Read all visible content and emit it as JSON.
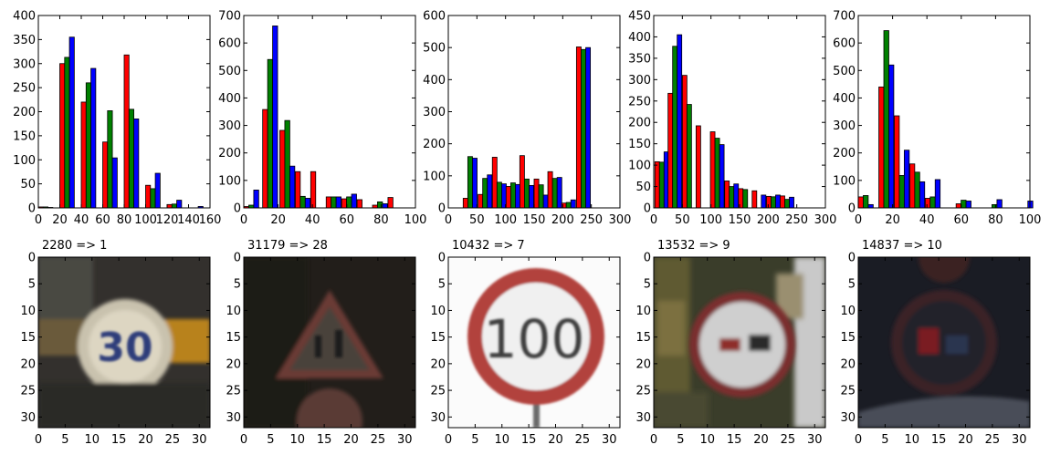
{
  "figure": {
    "background": "#ffffff",
    "colors": {
      "red": "#ff0000",
      "green": "#008000",
      "blue": "#0000ff",
      "edge": "#000000"
    }
  },
  "chart_data": [
    {
      "type": "bar",
      "title": "",
      "xlabel": "",
      "ylabel": "",
      "xlim": [
        0,
        160
      ],
      "ylim": [
        0,
        400
      ],
      "xticks": [
        0,
        20,
        40,
        60,
        80,
        100,
        120,
        140,
        160
      ],
      "yticks": [
        0,
        50,
        100,
        150,
        200,
        250,
        300,
        350,
        400
      ],
      "grid": false,
      "bin_width": 4.5,
      "bin_starts": [
        0,
        20,
        40,
        60,
        80,
        100,
        120,
        140
      ],
      "series": [
        {
          "color": "#ff0000",
          "values": [
            2,
            300,
            220,
            137,
            318,
            47,
            7,
            0
          ]
        },
        {
          "color": "#008000",
          "values": [
            2,
            313,
            260,
            202,
            205,
            40,
            8,
            0
          ]
        },
        {
          "color": "#0000ff",
          "values": [
            1,
            355,
            290,
            104,
            185,
            72,
            16,
            3
          ]
        }
      ]
    },
    {
      "type": "bar",
      "title": "",
      "xlabel": "",
      "ylabel": "",
      "xlim": [
        0,
        100
      ],
      "ylim": [
        0,
        700
      ],
      "xticks": [
        0,
        20,
        40,
        60,
        80,
        100
      ],
      "yticks": [
        0,
        100,
        200,
        300,
        400,
        500,
        600,
        700
      ],
      "grid": false,
      "bin_width": 2.9,
      "bin_starts": [
        0,
        11,
        21,
        30,
        39,
        48,
        57,
        66,
        75,
        84
      ],
      "series": [
        {
          "color": "#ff0000",
          "values": [
            5,
            358,
            282,
            132,
            132,
            40,
            33,
            30,
            10,
            38
          ]
        },
        {
          "color": "#008000",
          "values": [
            10,
            540,
            318,
            42,
            0,
            40,
            40,
            0,
            22,
            0
          ]
        },
        {
          "color": "#0000ff",
          "values": [
            65,
            662,
            152,
            35,
            0,
            40,
            50,
            0,
            15,
            0
          ]
        }
      ]
    },
    {
      "type": "bar",
      "title": "",
      "xlabel": "",
      "ylabel": "",
      "xlim": [
        0,
        300
      ],
      "ylim": [
        0,
        600
      ],
      "xticks": [
        0,
        50,
        100,
        150,
        200,
        250,
        300
      ],
      "yticks": [
        0,
        100,
        200,
        300,
        400,
        500,
        600
      ],
      "grid": false,
      "bin_width": 8.1,
      "bin_starts": [
        0,
        26,
        52,
        77,
        101,
        125,
        150,
        174,
        198,
        224
      ],
      "series": [
        {
          "color": "#ff0000",
          "values": [
            0,
            30,
            42,
            158,
            67,
            163,
            90,
            113,
            15,
            502
          ]
        },
        {
          "color": "#008000",
          "values": [
            0,
            160,
            92,
            80,
            78,
            90,
            72,
            92,
            17,
            494
          ]
        },
        {
          "color": "#0000ff",
          "values": [
            0,
            155,
            103,
            75,
            73,
            70,
            40,
            95,
            25,
            500
          ]
        }
      ]
    },
    {
      "type": "bar",
      "title": "",
      "xlabel": "",
      "ylabel": "",
      "xlim": [
        0,
        300
      ],
      "ylim": [
        0,
        450
      ],
      "xticks": [
        0,
        50,
        100,
        150,
        200,
        250,
        300
      ],
      "yticks": [
        0,
        50,
        100,
        150,
        200,
        250,
        300,
        350,
        400,
        450
      ],
      "grid": false,
      "bin_width": 8.0,
      "bin_starts": [
        2,
        25,
        50,
        74,
        99,
        124,
        148,
        172,
        197,
        221
      ],
      "series": [
        {
          "color": "#ff0000",
          "values": [
            108,
            268,
            310,
            192,
            178,
            63,
            45,
            40,
            27,
            28
          ]
        },
        {
          "color": "#008000",
          "values": [
            107,
            378,
            242,
            0,
            163,
            50,
            43,
            0,
            26,
            20
          ]
        },
        {
          "color": "#0000ff",
          "values": [
            131,
            405,
            0,
            0,
            148,
            56,
            0,
            30,
            30,
            25
          ]
        }
      ]
    },
    {
      "type": "bar",
      "title": "",
      "xlabel": "",
      "ylabel": "",
      "xlim": [
        0,
        100
      ],
      "ylim": [
        0,
        700
      ],
      "xticks": [
        0,
        20,
        40,
        60,
        80,
        100
      ],
      "yticks": [
        0,
        100,
        200,
        300,
        400,
        500,
        600,
        700
      ],
      "grid": false,
      "bin_width": 2.9,
      "bin_starts": [
        0,
        12,
        21,
        30,
        39,
        48,
        57,
        66,
        75,
        84,
        93
      ],
      "series": [
        {
          "color": "#ff0000",
          "values": [
            40,
            440,
            335,
            160,
            35,
            0,
            15,
            0,
            0,
            0,
            0
          ]
        },
        {
          "color": "#008000",
          "values": [
            45,
            645,
            118,
            130,
            40,
            0,
            28,
            0,
            12,
            0,
            0
          ]
        },
        {
          "color": "#0000ff",
          "values": [
            12,
            520,
            210,
            95,
            103,
            0,
            25,
            0,
            30,
            0,
            25
          ]
        }
      ]
    }
  ],
  "image_panels": [
    {
      "title": "2280 => 1",
      "scene": "speed-limit-30-sign"
    },
    {
      "title": "31179 => 28",
      "scene": "children-crossing-warning-sign"
    },
    {
      "title": "10432 => 7",
      "scene": "speed-limit-100-sign"
    },
    {
      "title": "13532 => 9",
      "scene": "no-passing-sign"
    },
    {
      "title": "14837 => 10",
      "scene": "no-passing-trucks-sign"
    }
  ],
  "image_axes": {
    "xlim": [
      0,
      32
    ],
    "ylim": [
      32,
      0
    ],
    "xticks": [
      0,
      5,
      10,
      15,
      20,
      25,
      30
    ],
    "yticks": [
      0,
      5,
      10,
      15,
      20,
      25,
      30
    ]
  }
}
